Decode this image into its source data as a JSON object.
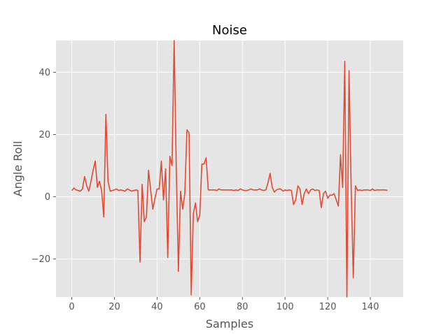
{
  "chart_data": {
    "type": "line",
    "title": "Noise",
    "xlabel": "Samples",
    "ylabel": "Angle Roll",
    "xlim": [
      -7.4,
      155.4
    ],
    "ylim": [
      -32.2,
      50.2
    ],
    "x_ticks": [
      0,
      20,
      40,
      60,
      80,
      100,
      120,
      140
    ],
    "y_ticks": [
      -20,
      0,
      20,
      40
    ],
    "grid": true,
    "legend": "none",
    "colors": {
      "background": "#e5e5e5",
      "grid": "#ffffff",
      "line": "#e24a33",
      "text": "#555555"
    },
    "series": [
      {
        "values": [
          2.0,
          2.8,
          2.2,
          2.0,
          1.8,
          2.5,
          6.5,
          3.5,
          1.8,
          5.0,
          8.5,
          11.5,
          3.0,
          5.0,
          2.0,
          -6.5,
          26.5,
          5.0,
          1.8,
          2.0,
          2.2,
          2.5,
          2.0,
          2.2,
          2.0,
          1.8,
          2.5,
          2.2,
          1.8,
          2.0,
          2.2,
          2.0,
          -21.0,
          4.0,
          -8.0,
          -6.5,
          8.5,
          2.0,
          -4.0,
          -0.5,
          2.5,
          2.5,
          11.5,
          -1.0,
          9.0,
          -19.5,
          13.0,
          10.0,
          50.2,
          9.0,
          -24.0,
          1.8,
          -4.0,
          1.0,
          21.5,
          20.5,
          -31.5,
          -5.5,
          -2.0,
          -8.0,
          -6.0,
          10.5,
          10.5,
          12.5,
          2.2,
          2.2,
          2.2,
          2.2,
          2.0,
          2.5,
          2.2,
          2.2,
          2.2,
          2.2,
          2.2,
          2.2,
          2.0,
          2.2,
          2.0,
          2.5,
          2.2,
          2.0,
          2.0,
          2.2,
          2.5,
          2.2,
          2.2,
          2.2,
          2.5,
          2.2,
          2.0,
          2.2,
          4.5,
          7.5,
          3.0,
          1.5,
          2.2,
          2.5,
          2.5,
          1.8,
          2.2,
          2.0,
          2.2,
          2.0,
          -2.5,
          -1.0,
          3.5,
          2.5,
          -2.5,
          1.0,
          2.5,
          1.0,
          2.2,
          2.5,
          2.0,
          2.2,
          2.0,
          -3.5,
          1.0,
          1.8,
          -0.5,
          0.5,
          0.5,
          1.0,
          -1.0,
          -3.0,
          13.5,
          3.0,
          43.5,
          -32.2,
          40.5,
          3.0,
          -26.0,
          3.5,
          2.0,
          2.2,
          2.0,
          2.2,
          2.2,
          2.2,
          2.0,
          2.5,
          2.0,
          2.2,
          2.2,
          2.2,
          2.2,
          2.2,
          2.0
        ]
      }
    ]
  }
}
